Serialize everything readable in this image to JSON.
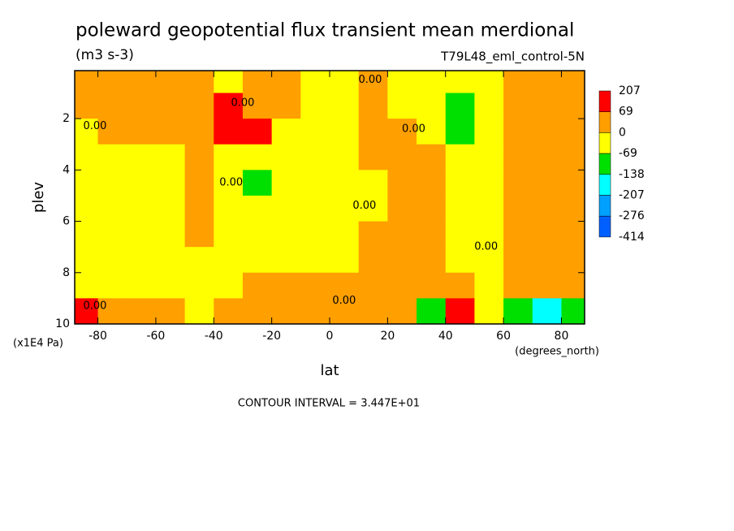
{
  "chart_data": {
    "type": "contour",
    "title": "poleward geopotential flux transient mean merdional",
    "subtitle": "(m3 s-3)",
    "dataset": "T79L48_eml_control-5N",
    "x_label": "lat",
    "x_units": "(degrees_north)",
    "y_label": "plev",
    "y_units": "(x1E4 Pa)",
    "footnote": "CONTOUR INTERVAL = 3.447E+01",
    "xlim": [
      -88,
      88
    ],
    "ylim": [
      10,
      0.13
    ],
    "xticks": [
      -80,
      -60,
      -40,
      -20,
      0,
      20,
      40,
      60,
      80
    ],
    "yticks": [
      2,
      4,
      6,
      8,
      10
    ],
    "x": [
      -85,
      -75,
      -65,
      -55,
      -45,
      -35,
      -25,
      -15,
      -5,
      5,
      15,
      25,
      35,
      45,
      55,
      65,
      75,
      85
    ],
    "y": [
      0.5,
      1.5,
      2.5,
      3.5,
      4.5,
      5.5,
      6.5,
      7.5,
      8.5,
      9.5
    ],
    "z": [
      [
        30,
        30,
        30,
        30,
        30,
        -30,
        30,
        30,
        -30,
        -30,
        30,
        -30,
        -30,
        -30,
        -30,
        30,
        30,
        30
      ],
      [
        30,
        30,
        30,
        30,
        30,
        100,
        30,
        30,
        -30,
        -30,
        30,
        -30,
        -30,
        -100,
        -30,
        30,
        30,
        30
      ],
      [
        -30,
        30,
        30,
        30,
        30,
        100,
        100,
        -30,
        -30,
        -30,
        30,
        30,
        -30,
        -100,
        -30,
        30,
        30,
        30
      ],
      [
        -30,
        -30,
        -30,
        -30,
        30,
        -30,
        -30,
        -30,
        -30,
        -30,
        30,
        30,
        30,
        -30,
        -30,
        30,
        30,
        30
      ],
      [
        -30,
        -30,
        -30,
        -30,
        30,
        -30,
        -75,
        -30,
        -30,
        -30,
        -30,
        30,
        30,
        -30,
        -30,
        30,
        30,
        30
      ],
      [
        -30,
        -30,
        -30,
        -30,
        30,
        -30,
        -30,
        -30,
        -30,
        -30,
        -30,
        30,
        30,
        -30,
        -30,
        30,
        30,
        30
      ],
      [
        -30,
        -30,
        -30,
        -30,
        30,
        -30,
        -30,
        -30,
        -30,
        -30,
        30,
        30,
        30,
        -30,
        -30,
        30,
        30,
        30
      ],
      [
        -30,
        -30,
        -30,
        -30,
        -30,
        -30,
        -30,
        -30,
        -30,
        -30,
        30,
        30,
        30,
        -30,
        -30,
        30,
        30,
        30
      ],
      [
        -30,
        -30,
        -30,
        -30,
        -30,
        -30,
        30,
        30,
        30,
        30,
        30,
        30,
        30,
        30,
        -30,
        30,
        30,
        30
      ],
      [
        100,
        30,
        30,
        30,
        -30,
        30,
        30,
        30,
        30,
        30,
        30,
        30,
        -80,
        100,
        -30,
        -80,
        -150,
        -100
      ]
    ],
    "levels": [
      207,
      69,
      0,
      -69,
      -138,
      -207,
      -276,
      -414
    ],
    "level_colors": [
      "#ff0000",
      "#ff9f00",
      "#ffff00",
      "#00e000",
      "#00ffff",
      "#00a0ff",
      "#0060ff"
    ],
    "contour_labels": [
      {
        "text": "0.00",
        "lat": 14,
        "plev": 0.5
      },
      {
        "text": "0.00",
        "lat": -81,
        "plev": 2.3
      },
      {
        "text": "0.00",
        "lat": -30,
        "plev": 1.4
      },
      {
        "text": "0.00",
        "lat": 29,
        "plev": 2.4
      },
      {
        "text": "0.00",
        "lat": -34,
        "plev": 4.5
      },
      {
        "text": "0.00",
        "lat": 12,
        "plev": 5.4
      },
      {
        "text": "0.00",
        "lat": 54,
        "plev": 7.0
      },
      {
        "text": "0.00",
        "lat": 5,
        "plev": 9.1
      },
      {
        "text": "0.00",
        "lat": -81,
        "plev": 9.3
      }
    ]
  }
}
